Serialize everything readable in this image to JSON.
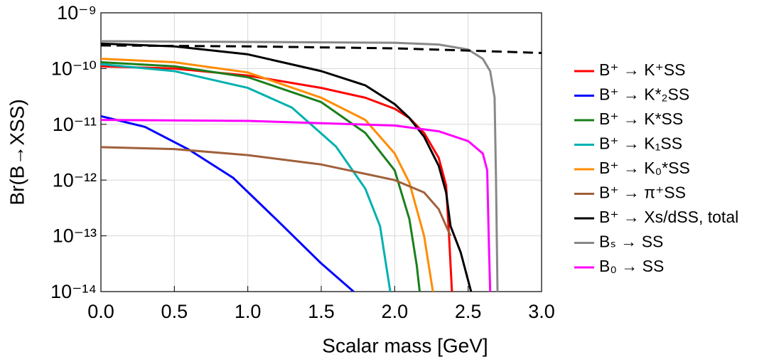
{
  "chart_data": {
    "type": "line",
    "xlabel": "Scalar mass [GeV]",
    "ylabel": "Br(B→XSS)",
    "xlim": [
      0,
      3
    ],
    "xticks": [
      {
        "value": 0,
        "label": "0.0"
      },
      0.5,
      {
        "value": 1,
        "label": "1.0"
      },
      1.5,
      {
        "value": 2,
        "label": "2.0"
      },
      2.5,
      {
        "value": 3,
        "label": "3.0"
      }
    ],
    "ylim": [
      1e-14,
      1e-09
    ],
    "log_y": true,
    "yticks": [
      {
        "value": 1e-14,
        "label": "10⁻¹⁴"
      },
      {
        "value": 1e-13,
        "label": "10⁻¹³"
      },
      {
        "value": 1e-12,
        "label": "10⁻¹²"
      },
      {
        "value": 1e-11,
        "label": "10⁻¹¹"
      },
      {
        "value": 1e-10,
        "label": "10⁻¹⁰"
      },
      {
        "value": 1e-09,
        "label": "10⁻⁹"
      }
    ],
    "grid": true,
    "legend": "right",
    "series": [
      {
        "name": "B⁺ → K⁺SS",
        "color": "#ff0000",
        "x": [
          0,
          0.5,
          1,
          1.5,
          1.8,
          2,
          2.1,
          2.2,
          2.3,
          2.35,
          2.37,
          2.39
        ],
        "values": [
          1.1e-10,
          1e-10,
          7.5e-11,
          4.5e-11,
          3e-11,
          1.9e-11,
          1.3e-11,
          7e-12,
          2.5e-12,
          8e-13,
          1e-13,
          1e-14
        ]
      },
      {
        "name": "B⁺ → K*₂SS",
        "color": "#0000ff",
        "x": [
          0,
          0.3,
          0.6,
          0.9,
          1.2,
          1.5,
          1.72
        ],
        "values": [
          1.4e-11,
          9e-12,
          3.5e-12,
          1.1e-12,
          1.9e-13,
          3.2e-14,
          1e-14
        ]
      },
      {
        "name": "B⁺ → K*SS",
        "color": "#1a7f1a",
        "x": [
          0,
          0.5,
          1,
          1.5,
          1.8,
          2,
          2.1,
          2.15,
          2.17
        ],
        "values": [
          1.3e-10,
          1.1e-10,
          7e-11,
          2.5e-11,
          7e-12,
          1.5e-12,
          2e-13,
          3e-14,
          1e-14
        ]
      },
      {
        "name": "B⁺ → K₁SS",
        "color": "#00b0b0",
        "x": [
          0,
          0.5,
          1,
          1.3,
          1.6,
          1.8,
          1.9,
          1.97
        ],
        "values": [
          1.2e-10,
          9e-11,
          4.5e-11,
          2e-11,
          4e-12,
          7e-13,
          1.5e-13,
          1e-14
        ]
      },
      {
        "name": "B⁺ → K₀*SS",
        "color": "#ff8c00",
        "x": [
          0,
          0.5,
          1,
          1.5,
          1.8,
          2,
          2.1,
          2.2,
          2.26
        ],
        "values": [
          1.5e-10,
          1.3e-10,
          8.5e-11,
          3e-11,
          1.2e-11,
          3e-12,
          9e-13,
          1e-13,
          1e-14
        ]
      },
      {
        "name": "B⁺ → π⁺SS",
        "color": "#a0603a",
        "x": [
          0,
          0.5,
          1,
          1.5,
          2,
          2.2,
          2.3,
          2.35,
          2.38
        ],
        "values": [
          3.9e-12,
          3.6e-12,
          2.8e-12,
          1.9e-12,
          1e-12,
          6e-13,
          3e-13,
          1.5e-13,
          1e-13
        ]
      },
      {
        "name": "B⁺ → Xs/dSS, total",
        "color": "#000000",
        "x": [
          0,
          0.5,
          1,
          1.5,
          1.8,
          2,
          2.1,
          2.2,
          2.3,
          2.35,
          2.38,
          2.45,
          2.52
        ],
        "values": [
          2.8e-10,
          2.5e-10,
          1.8e-10,
          9e-11,
          5e-11,
          2.3e-11,
          1.3e-11,
          6e-12,
          1.8e-12,
          6e-13,
          1.5e-13,
          5e-14,
          1e-14
        ]
      },
      {
        "name": "Bₛ → SS",
        "color": "#888888",
        "x": [
          0,
          1,
          2,
          2.3,
          2.5,
          2.6,
          2.65,
          2.68,
          2.69,
          2.7
        ],
        "values": [
          3.1e-10,
          3e-10,
          2.9e-10,
          2.7e-10,
          2.2e-10,
          1.5e-10,
          9e-11,
          3e-11,
          1e-12,
          1e-14
        ]
      },
      {
        "name": "B₀ → SS",
        "color": "#ff00ff",
        "x": [
          0,
          1,
          2,
          2.3,
          2.5,
          2.6,
          2.63,
          2.64,
          2.65
        ],
        "values": [
          1.2e-11,
          1.15e-11,
          9.5e-12,
          7.5e-12,
          5e-12,
          3e-12,
          1.5e-12,
          1e-13,
          1e-14
        ]
      },
      {
        "color": "#000000",
        "dash": true,
        "x": [
          0,
          1,
          2,
          2.5,
          3
        ],
        "values": [
          2.6e-10,
          2.5e-10,
          2.3e-10,
          2.1e-10,
          1.9e-10
        ]
      }
    ]
  }
}
